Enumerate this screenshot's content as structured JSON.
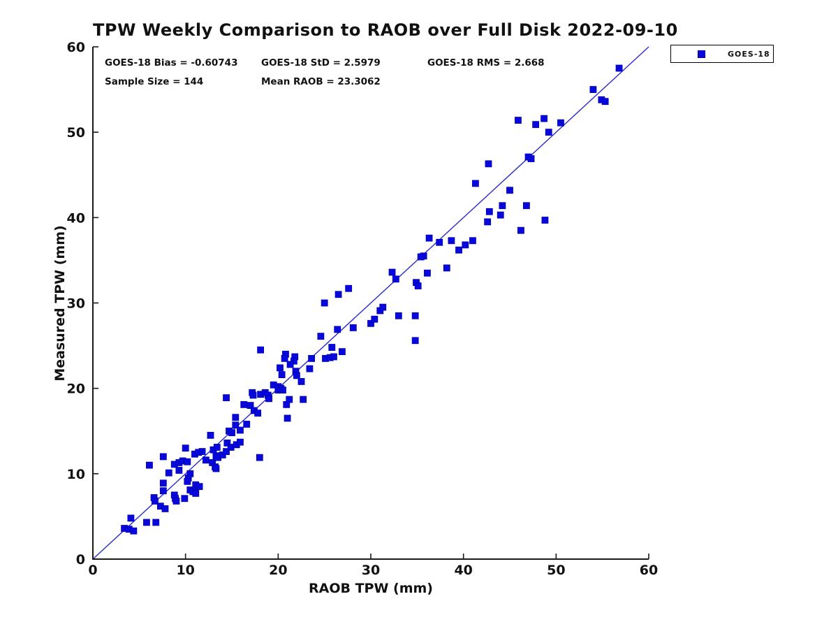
{
  "title": "TPW Weekly Comparison to RAOB over Full Disk 2022-09-10",
  "stats": {
    "bias": "GOES-18 Bias = -0.60743",
    "std": "GOES-18 StD = 2.5979",
    "rms": "GOES-18 RMS = 2.668",
    "sample_size": "Sample Size = 144",
    "mean_raob": "Mean RAOB = 23.3062"
  },
  "legend": {
    "label": "GOES-18"
  },
  "colors": {
    "marker": "#0808dd",
    "marker_edge": "#0000b0",
    "line": "#2a2acc",
    "axis": "#1a1a1a",
    "text": "#111111",
    "background": "#ffffff"
  },
  "chart_data": {
    "type": "scatter",
    "title": "TPW Weekly Comparison to RAOB over Full Disk 2022-09-10",
    "xlabel": "RAOB TPW (mm)",
    "ylabel": "Measured TPW (mm)",
    "xlim": [
      0,
      60
    ],
    "ylim": [
      0,
      60
    ],
    "xticks": [
      0,
      10,
      20,
      30,
      40,
      50,
      60
    ],
    "yticks": [
      0,
      10,
      20,
      30,
      40,
      50,
      60
    ],
    "grid": false,
    "legend_position": "top-right-outside",
    "reference_line": {
      "from": [
        0,
        0
      ],
      "to": [
        60,
        60
      ]
    },
    "series": [
      {
        "name": "GOES-18",
        "marker": "square",
        "points": [
          [
            3.4,
            3.6
          ],
          [
            3.9,
            3.5
          ],
          [
            4.4,
            3.3
          ],
          [
            4.1,
            4.8
          ],
          [
            5.8,
            4.3
          ],
          [
            6.8,
            4.3
          ],
          [
            6.6,
            7.2
          ],
          [
            6.7,
            6.8
          ],
          [
            7.3,
            6.2
          ],
          [
            7.8,
            5.9
          ],
          [
            6.1,
            11.0
          ],
          [
            7.6,
            12.0
          ],
          [
            7.6,
            8.9
          ],
          [
            7.6,
            8.0
          ],
          [
            8.8,
            11.1
          ],
          [
            8.2,
            10.1
          ],
          [
            9.3,
            11.3
          ],
          [
            9.7,
            11.5
          ],
          [
            10.2,
            11.4
          ],
          [
            9.3,
            10.4
          ],
          [
            10.5,
            10.0
          ],
          [
            10.3,
            9.5
          ],
          [
            10.2,
            9.1
          ],
          [
            11.1,
            8.7
          ],
          [
            11.5,
            8.5
          ],
          [
            8.8,
            7.5
          ],
          [
            8.9,
            7.1
          ],
          [
            9.0,
            6.8
          ],
          [
            9.9,
            7.1
          ],
          [
            10.0,
            13.0
          ],
          [
            11.0,
            12.3
          ],
          [
            11.4,
            12.5
          ],
          [
            11.8,
            12.6
          ],
          [
            12.2,
            11.6
          ],
          [
            10.5,
            8.1
          ],
          [
            10.8,
            7.9
          ],
          [
            11.1,
            7.7
          ],
          [
            12.7,
            14.5
          ],
          [
            12.9,
            11.3
          ],
          [
            13.2,
            10.8
          ],
          [
            13.3,
            10.6
          ],
          [
            13.3,
            12.1
          ],
          [
            13.5,
            11.9
          ],
          [
            13.0,
            12.8
          ],
          [
            13.4,
            13.1
          ],
          [
            14.0,
            12.2
          ],
          [
            14.4,
            12.6
          ],
          [
            14.5,
            13.6
          ],
          [
            14.9,
            13.1
          ],
          [
            15.5,
            13.4
          ],
          [
            14.7,
            15.0
          ],
          [
            15.0,
            14.8
          ],
          [
            15.4,
            15.7
          ],
          [
            15.9,
            15.1
          ],
          [
            15.9,
            13.7
          ],
          [
            15.4,
            16.6
          ],
          [
            16.6,
            15.8
          ],
          [
            16.3,
            18.1
          ],
          [
            17.0,
            18.0
          ],
          [
            17.4,
            17.4
          ],
          [
            17.8,
            17.1
          ],
          [
            20.9,
            18.1
          ],
          [
            14.4,
            18.9
          ],
          [
            21.0,
            16.5
          ],
          [
            17.2,
            19.5
          ],
          [
            17.3,
            19.2
          ],
          [
            18.1,
            19.3
          ],
          [
            18.6,
            19.5
          ],
          [
            18.9,
            19.2
          ],
          [
            19.0,
            18.8
          ],
          [
            20.0,
            19.8
          ],
          [
            21.2,
            18.7
          ],
          [
            22.7,
            18.7
          ],
          [
            19.5,
            20.4
          ],
          [
            20.0,
            20.2
          ],
          [
            20.3,
            20.0
          ],
          [
            20.5,
            19.8
          ],
          [
            18.1,
            24.5
          ],
          [
            20.8,
            24.0
          ],
          [
            20.7,
            23.5
          ],
          [
            21.8,
            23.7
          ],
          [
            21.7,
            23.2
          ],
          [
            20.2,
            22.4
          ],
          [
            21.3,
            22.8
          ],
          [
            20.4,
            21.6
          ],
          [
            21.9,
            22.0
          ],
          [
            22.0,
            21.5
          ],
          [
            22.5,
            20.8
          ],
          [
            23.4,
            22.3
          ],
          [
            18.0,
            11.9
          ],
          [
            23.6,
            23.5
          ],
          [
            25.1,
            23.5
          ],
          [
            25.6,
            23.6
          ],
          [
            26.0,
            23.7
          ],
          [
            25.8,
            24.8
          ],
          [
            26.9,
            24.3
          ],
          [
            24.6,
            26.1
          ],
          [
            26.4,
            26.9
          ],
          [
            28.1,
            27.1
          ],
          [
            25.0,
            30.0
          ],
          [
            26.5,
            31.0
          ],
          [
            27.6,
            31.7
          ],
          [
            30.0,
            27.6
          ],
          [
            30.4,
            28.1
          ],
          [
            31.0,
            29.1
          ],
          [
            31.3,
            29.5
          ],
          [
            33.0,
            28.5
          ],
          [
            34.8,
            28.5
          ],
          [
            34.8,
            25.6
          ],
          [
            32.3,
            33.6
          ],
          [
            32.7,
            32.8
          ],
          [
            34.9,
            32.4
          ],
          [
            35.1,
            32.0
          ],
          [
            36.1,
            33.5
          ],
          [
            38.2,
            34.1
          ],
          [
            35.7,
            35.5
          ],
          [
            35.4,
            35.4
          ],
          [
            36.3,
            37.6
          ],
          [
            37.4,
            37.1
          ],
          [
            38.7,
            37.3
          ],
          [
            39.5,
            36.2
          ],
          [
            40.2,
            36.8
          ],
          [
            41.0,
            37.3
          ],
          [
            41.3,
            44.0
          ],
          [
            42.7,
            46.3
          ],
          [
            45.0,
            43.2
          ],
          [
            44.2,
            41.4
          ],
          [
            46.8,
            41.4
          ],
          [
            42.8,
            40.7
          ],
          [
            44.0,
            40.3
          ],
          [
            42.6,
            39.5
          ],
          [
            48.8,
            39.7
          ],
          [
            46.2,
            38.5
          ],
          [
            47.0,
            47.1
          ],
          [
            47.3,
            46.9
          ],
          [
            45.9,
            51.4
          ],
          [
            47.8,
            50.9
          ],
          [
            48.7,
            51.6
          ],
          [
            50.5,
            51.1
          ],
          [
            49.2,
            50.0
          ],
          [
            54.9,
            53.8
          ],
          [
            55.3,
            53.6
          ],
          [
            54.0,
            55.0
          ],
          [
            56.8,
            57.5
          ]
        ]
      }
    ]
  }
}
